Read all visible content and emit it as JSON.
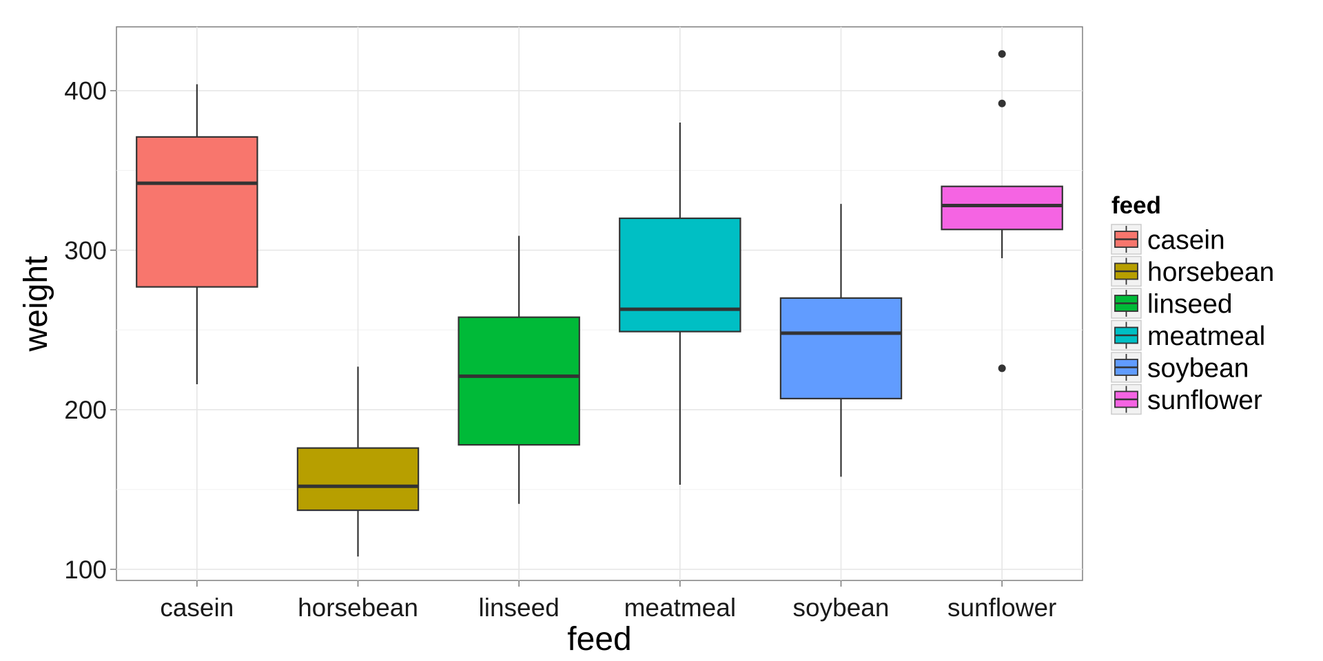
{
  "chart_data": {
    "type": "boxplot",
    "title": "",
    "xlabel": "feed",
    "ylabel": "weight",
    "ylim": [
      93,
      440
    ],
    "y_ticks": [
      100,
      200,
      300,
      400
    ],
    "grid": true,
    "legend": {
      "title": "feed",
      "position": "right"
    },
    "categories": [
      "casein",
      "horsebean",
      "linseed",
      "meatmeal",
      "soybean",
      "sunflower"
    ],
    "boxes": [
      {
        "name": "casein",
        "color": "#F8766D",
        "whisker_low": 216,
        "q1": 277,
        "median": 342,
        "q3": 371,
        "whisker_high": 404,
        "outliers": []
      },
      {
        "name": "horsebean",
        "color": "#B79F00",
        "whisker_low": 108,
        "q1": 137,
        "median": 152,
        "q3": 176,
        "whisker_high": 227,
        "outliers": []
      },
      {
        "name": "linseed",
        "color": "#00BA38",
        "whisker_low": 141,
        "q1": 178,
        "median": 221,
        "q3": 258,
        "whisker_high": 309,
        "outliers": []
      },
      {
        "name": "meatmeal",
        "color": "#00BFC4",
        "whisker_low": 153,
        "q1": 249,
        "median": 263,
        "q3": 320,
        "whisker_high": 380,
        "outliers": []
      },
      {
        "name": "soybean",
        "color": "#619CFF",
        "whisker_low": 158,
        "q1": 207,
        "median": 248,
        "q3": 270,
        "whisker_high": 329,
        "outliers": []
      },
      {
        "name": "sunflower",
        "color": "#F564E3",
        "whisker_low": 295,
        "q1": 313,
        "median": 328,
        "q3": 340,
        "whisker_high": 340,
        "outliers": [
          226,
          392,
          423
        ]
      }
    ]
  }
}
